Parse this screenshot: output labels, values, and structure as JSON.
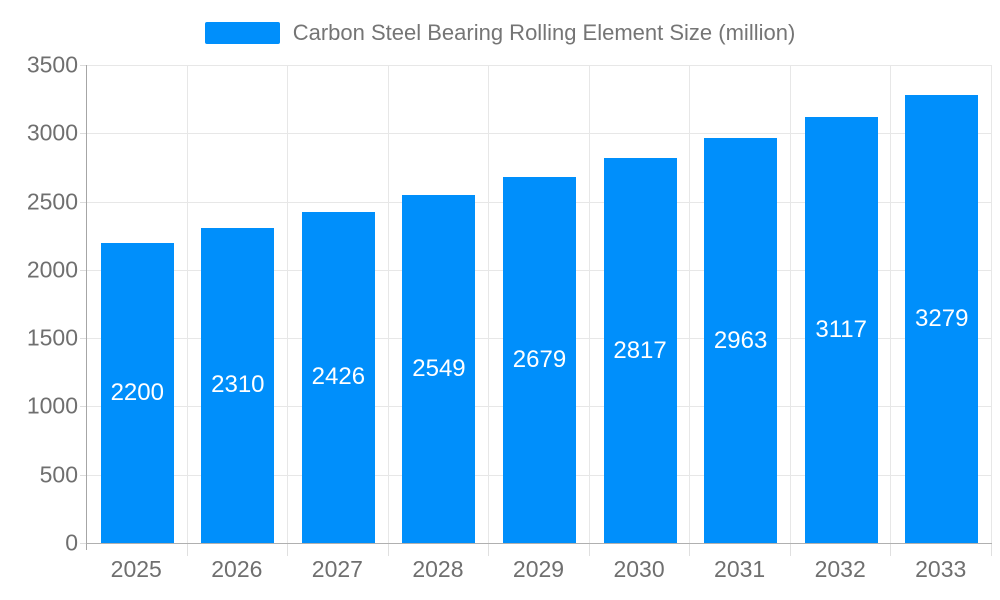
{
  "legend": {
    "label": "Carbon Steel Bearing Rolling Element Size (million)"
  },
  "chart_data": {
    "type": "bar",
    "title": "Carbon Steel Bearing Rolling Element Size (million)",
    "categories": [
      "2025",
      "2026",
      "2027",
      "2028",
      "2029",
      "2030",
      "2031",
      "2032",
      "2033"
    ],
    "values": [
      2200,
      2310,
      2426,
      2549,
      2679,
      2817,
      2963,
      3117,
      3279
    ],
    "xlabel": "",
    "ylabel": "",
    "ylim": [
      0,
      3500
    ],
    "yticks": [
      0,
      500,
      1000,
      1500,
      2000,
      2500,
      3000,
      3500
    ],
    "grid": true,
    "legend_position": "top",
    "colors": {
      "bar": "#008FFB",
      "data_label": "#ffffff",
      "axis_text": "#6f6f6f",
      "legend_text": "#757575",
      "gridline": "#e7e7e7",
      "axis_line": "#a6a6a6"
    }
  }
}
